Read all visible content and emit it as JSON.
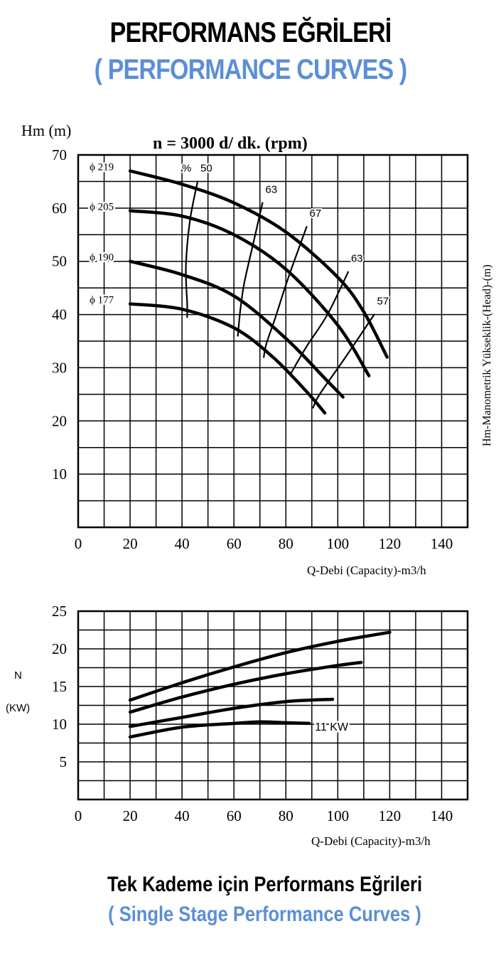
{
  "title": "PERFORMANS EĞRİLERİ",
  "subtitle": "( PERFORMANCE CURVES )",
  "footer_title": "Tek Kademe için Performans Eğrileri",
  "footer_subtitle": "( Single Stage Performance Curves )",
  "colors": {
    "accent_blue": "#5b8fd6",
    "ink": "#000000"
  },
  "chart_data": [
    {
      "type": "line",
      "title": "n = 3000 d/ dk.  (rpm)",
      "ylabel": "Hm (m)",
      "ylabel_right": "Hm-Manometrik Yükseklik-(Head)-(m)",
      "xlabel": "Q-Debi (Capacity)-m3/h",
      "xlim": [
        0,
        150
      ],
      "ylim": [
        0,
        70
      ],
      "xticks": [
        "0",
        "20",
        "40",
        "60",
        "80",
        "100",
        "120",
        "140"
      ],
      "yticks": [
        "10",
        "20",
        "30",
        "40",
        "50",
        "60",
        "70"
      ],
      "grid": true,
      "series": [
        {
          "name": "ϕ 219",
          "x": [
            20,
            40,
            60,
            80,
            100,
            110,
            119
          ],
          "y": [
            67,
            64.5,
            61,
            55.5,
            47,
            40.5,
            32
          ]
        },
        {
          "name": "ϕ 205",
          "x": [
            20,
            40,
            60,
            80,
            100,
            112
          ],
          "y": [
            59.5,
            58.5,
            55,
            48.5,
            38,
            28.5
          ]
        },
        {
          "name": "ϕ 190",
          "x": [
            20,
            40,
            60,
            80,
            95,
            102
          ],
          "y": [
            50,
            47.5,
            43.5,
            35.5,
            28,
            24.5
          ]
        },
        {
          "name": "ϕ 177",
          "x": [
            20,
            40,
            60,
            75,
            88,
            95
          ],
          "y": [
            42,
            41,
            37.5,
            32,
            25.5,
            21.5
          ]
        }
      ],
      "efficiency_curves": [
        {
          "label": "50",
          "prefix": "%",
          "x": [
            46,
            43,
            41.5,
            42,
            42
          ],
          "y": [
            65,
            57.5,
            49,
            42,
            39.5
          ]
        },
        {
          "label": "63",
          "x": [
            71,
            67.5,
            64,
            62.5,
            61.5
          ],
          "y": [
            61,
            53.5,
            46,
            41,
            36
          ]
        },
        {
          "label": "67",
          "x": [
            88,
            81,
            76,
            72.5,
            71.5
          ],
          "y": [
            56.5,
            47,
            39.5,
            34.5,
            32
          ]
        },
        {
          "label": "63",
          "x": [
            104,
            96,
            88,
            82
          ],
          "y": [
            48,
            40,
            34,
            29
          ]
        },
        {
          "label": "57",
          "x": [
            114,
            103,
            93,
            90.5
          ],
          "y": [
            40,
            32,
            25,
            22.5
          ]
        }
      ]
    },
    {
      "type": "line",
      "ylabel": "N",
      "ylabel_unit": "(KW)",
      "xlabel": "Q-Debi (Capacity)-m3/h",
      "xlim": [
        0,
        150
      ],
      "ylim": [
        0,
        25
      ],
      "xticks": [
        "0",
        "20",
        "40",
        "60",
        "80",
        "100",
        "120",
        "140"
      ],
      "yticks": [
        "5",
        "10",
        "15",
        "20",
        "25"
      ],
      "grid": true,
      "annotation": "11 KW",
      "series": [
        {
          "x": [
            20,
            40,
            60,
            80,
            100,
            120
          ],
          "y": [
            13.2,
            15.5,
            17.6,
            19.5,
            21,
            22.2
          ]
        },
        {
          "x": [
            20,
            40,
            60,
            80,
            100,
            109
          ],
          "y": [
            11.6,
            13.6,
            15.3,
            16.7,
            17.8,
            18.2
          ]
        },
        {
          "x": [
            20,
            40,
            60,
            80,
            98
          ],
          "y": [
            9.7,
            10.9,
            12.1,
            13,
            13.3
          ]
        },
        {
          "x": [
            20,
            40,
            60,
            70,
            80,
            89
          ],
          "y": [
            8.3,
            9.6,
            10.1,
            10.3,
            10.2,
            10.1
          ]
        }
      ]
    }
  ]
}
